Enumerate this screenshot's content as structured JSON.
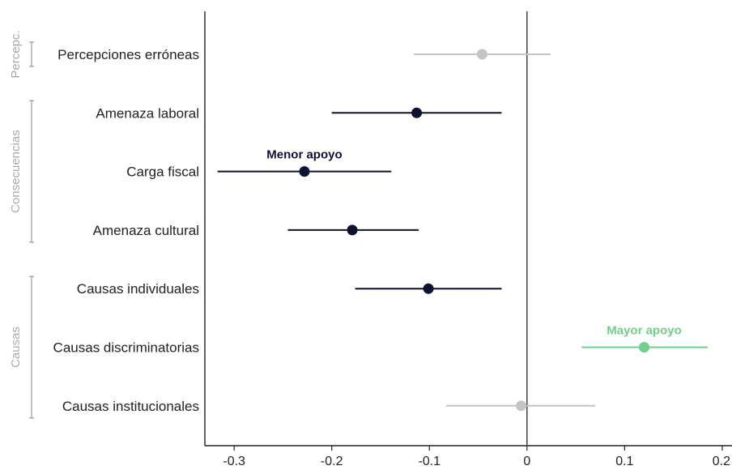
{
  "chart_data": {
    "type": "scatter",
    "orientation": "horizontal-coefficient-plot",
    "xlim": [
      -0.33,
      0.21
    ],
    "xticks": [
      -0.3,
      -0.2,
      -0.1,
      0,
      0.1,
      0.2
    ],
    "tick_labels": [
      "-0.3",
      "-0.2",
      "-0.1",
      "0",
      "0.1",
      "0.2"
    ],
    "reference_line": 0,
    "grid": false,
    "points": [
      {
        "label": "Percepciones erróneas",
        "estimate": -0.046,
        "ci_low": -0.116,
        "ci_high": 0.024,
        "color": "#c4c4c4"
      },
      {
        "label": "Amenaza laboral",
        "estimate": -0.113,
        "ci_low": -0.2,
        "ci_high": -0.026,
        "color": "#0d1233"
      },
      {
        "label": "Carga fiscal",
        "estimate": -0.228,
        "ci_low": -0.317,
        "ci_high": -0.139,
        "color": "#0d1233"
      },
      {
        "label": "Amenaza cultural",
        "estimate": -0.179,
        "ci_low": -0.245,
        "ci_high": -0.111,
        "color": "#0d1233"
      },
      {
        "label": "Causas individuales",
        "estimate": -0.101,
        "ci_low": -0.176,
        "ci_high": -0.026,
        "color": "#0d1233"
      },
      {
        "label": "Causas discriminatorias",
        "estimate": 0.12,
        "ci_low": 0.056,
        "ci_high": 0.185,
        "color": "#6fd08a"
      },
      {
        "label": "Causas institucionales",
        "estimate": -0.006,
        "ci_low": -0.083,
        "ci_high": 0.07,
        "color": "#c4c4c4"
      }
    ],
    "groups": [
      {
        "label": "Percepc.",
        "rows": [
          0,
          0
        ]
      },
      {
        "label": "Consecuencias",
        "rows": [
          1,
          3
        ]
      },
      {
        "label": "Causas",
        "rows": [
          4,
          6
        ]
      }
    ],
    "annotations": [
      {
        "text": "Menor apoyo",
        "row": 2,
        "x": -0.228,
        "color": "#0d1233"
      },
      {
        "text": "Mayor apoyo",
        "row": 5,
        "x": 0.12,
        "color": "#6fd08a"
      }
    ]
  }
}
